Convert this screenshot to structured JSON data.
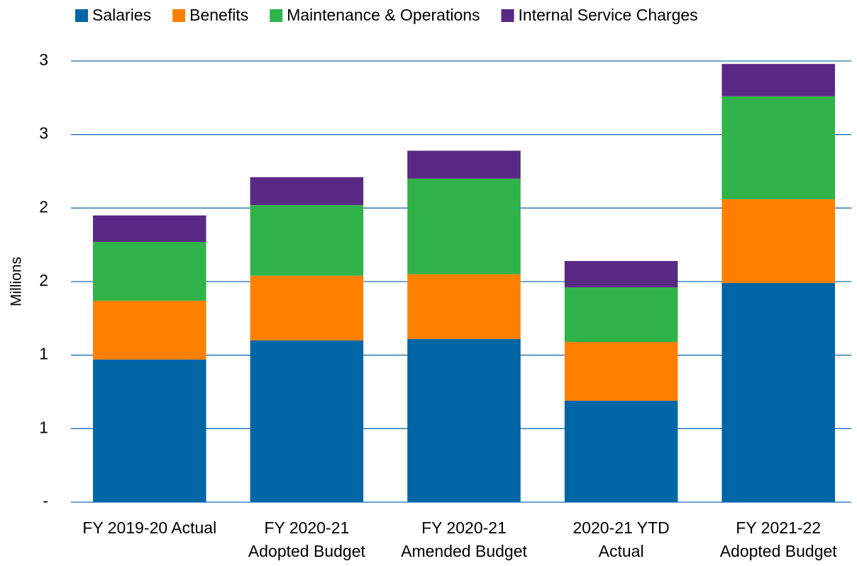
{
  "chart_data": {
    "type": "stacked_bar",
    "y_axis_label": "Millions",
    "categories": [
      [
        "FY 2019-20 Actual"
      ],
      [
        "FY 2020-21",
        "Adopted Budget"
      ],
      [
        "FY 2020-21",
        "Amended Budget"
      ],
      [
        "2020-21 YTD",
        "Actual"
      ],
      [
        "FY 2021-22",
        "Adopted Budget"
      ]
    ],
    "series": [
      {
        "name": "Salaries",
        "color": "#0066a6",
        "values": [
          0.97,
          1.1,
          1.11,
          0.69,
          1.49
        ]
      },
      {
        "name": "Benefits",
        "color": "#ff8000",
        "values": [
          0.4,
          0.44,
          0.44,
          0.4,
          0.57
        ]
      },
      {
        "name": "Maintenance & Operations",
        "color": "#2fb34a",
        "values": [
          0.4,
          0.48,
          0.65,
          0.37,
          0.7
        ]
      },
      {
        "name": "Internal Service Charges",
        "color": "#582a83",
        "values": [
          0.18,
          0.19,
          0.19,
          0.18,
          0.22
        ]
      }
    ],
    "ylim": [
      0,
      3
    ],
    "yticks": [
      {
        "value": 0,
        "label": "-"
      },
      {
        "value": 0.5,
        "label": "1"
      },
      1,
      {
        "value": 1.5,
        "label": "2"
      },
      2,
      {
        "value": 2.5,
        "label": "3"
      },
      3
    ],
    "grid": true,
    "grid_color": "#1f6fae",
    "legend": "top"
  }
}
